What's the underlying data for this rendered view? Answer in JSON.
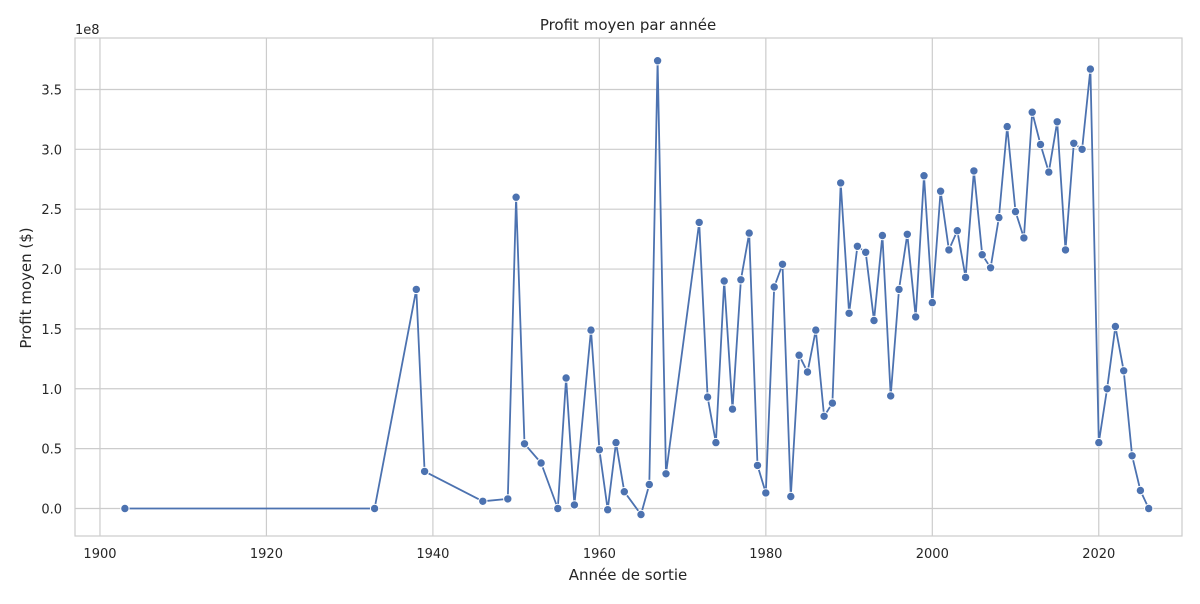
{
  "chart_data": {
    "type": "line",
    "title": "Profit moyen par année",
    "xlabel": "Année de sortie",
    "ylabel": "Profit moyen ($)",
    "y_offset_label": "1e8",
    "xlim": [
      1897,
      2030
    ],
    "ylim": [
      -0.23,
      3.93
    ],
    "y_unit_multiplier": 100000000,
    "xticks": [
      1900,
      1920,
      1940,
      1960,
      1980,
      2000,
      2020
    ],
    "xtick_labels": [
      "1900",
      "1920",
      "1940",
      "1960",
      "1980",
      "2000",
      "2020"
    ],
    "yticks": [
      0.0,
      0.5,
      1.0,
      1.5,
      2.0,
      2.5,
      3.0,
      3.5
    ],
    "ytick_labels": [
      "0.0",
      "0.5",
      "1.0",
      "1.5",
      "2.0",
      "2.5",
      "3.0",
      "3.5"
    ],
    "grid": true,
    "marker": "circle",
    "color": "#4c72b0",
    "x": [
      1903,
      1933,
      1938,
      1939,
      1946,
      1949,
      1950,
      1951,
      1953,
      1955,
      1956,
      1957,
      1959,
      1960,
      1961,
      1962,
      1963,
      1965,
      1966,
      1967,
      1968,
      1972,
      1973,
      1974,
      1975,
      1976,
      1977,
      1978,
      1979,
      1980,
      1981,
      1982,
      1983,
      1984,
      1985,
      1986,
      1987,
      1988,
      1989,
      1990,
      1991,
      1992,
      1993,
      1994,
      1995,
      1996,
      1997,
      1998,
      1999,
      2000,
      2001,
      2002,
      2003,
      2004,
      2005,
      2006,
      2007,
      2008,
      2009,
      2010,
      2011,
      2012,
      2013,
      2014,
      2015,
      2016,
      2017,
      2018,
      2019,
      2020,
      2021,
      2022,
      2023,
      2024,
      2025,
      2026
    ],
    "y": [
      0.0,
      0.0,
      1.83,
      0.31,
      0.06,
      0.08,
      2.6,
      0.54,
      0.38,
      0.0,
      1.09,
      0.03,
      1.49,
      0.49,
      -0.01,
      0.55,
      0.14,
      -0.05,
      0.2,
      3.74,
      0.29,
      2.39,
      0.93,
      0.55,
      1.9,
      0.83,
      1.91,
      2.3,
      0.36,
      0.13,
      1.85,
      2.04,
      0.1,
      1.28,
      1.14,
      1.49,
      0.77,
      0.88,
      2.72,
      1.63,
      2.19,
      2.14,
      1.57,
      2.28,
      0.94,
      1.83,
      2.29,
      1.6,
      2.78,
      1.72,
      2.65,
      2.16,
      2.32,
      1.93,
      2.82,
      2.12,
      2.01,
      2.43,
      3.19,
      2.48,
      2.26,
      3.31,
      3.04,
      2.81,
      3.23,
      2.16,
      3.05,
      3.0,
      3.67,
      0.55,
      1.0,
      1.52,
      1.15,
      0.44,
      0.15,
      0.0
    ]
  }
}
